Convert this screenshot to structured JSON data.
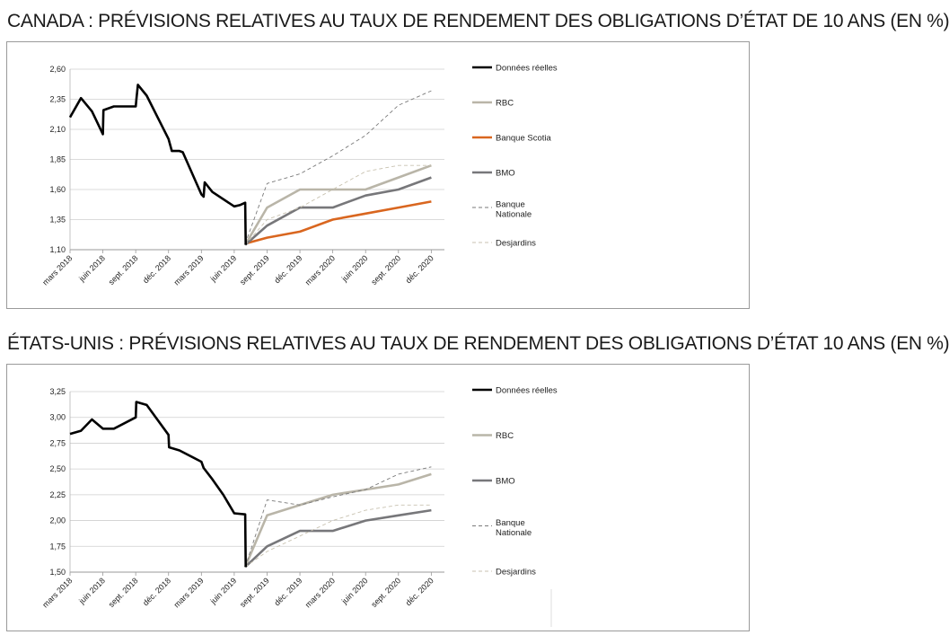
{
  "titles": {
    "canada": "CANADA : PRÉVISIONS RELATIVES AU TAUX DE RENDEMENT DES OBLIGATIONS D’ÉTAT DE 10 ANS (EN %)",
    "usa": "ÉTATS-UNIS : PRÉVISIONS RELATIVES AU TAUX DE RENDEMENT DES OBLIGATIONS D’ÉTAT 10 ANS (EN %)"
  },
  "chart_data": [
    {
      "type": "line",
      "title": "CANADA : PRÉVISIONS RELATIVES AU TAUX DE RENDEMENT DES OBLIGATIONS D’ÉTAT DE 10 ANS (EN %)",
      "x_tick_labels": [
        "mars 2018",
        "juin 2018",
        "sept. 2018",
        "déc. 2018",
        "mars 2019",
        "juin 2019",
        "sept. 2019",
        "déc. 2019",
        "mars 2020",
        "juin 2020",
        "sept. 2020",
        "déc. 2020"
      ],
      "x_tick_months": [
        0,
        3,
        6,
        9,
        12,
        15,
        18,
        21,
        24,
        27,
        30,
        33
      ],
      "xlim_months": [
        0,
        34.2
      ],
      "ylim": [
        1.1,
        2.6
      ],
      "y_ticks": [
        "1,10",
        "1,35",
        "1,60",
        "1,85",
        "2,10",
        "2,35",
        "2,60"
      ],
      "y_tick_values": [
        1.1,
        1.35,
        1.6,
        1.85,
        2.1,
        2.35,
        2.6
      ],
      "grid": "horizontal",
      "legend_position": "right",
      "series": [
        {
          "name": "Données réelles",
          "color": "#000000",
          "style": "solid-thick",
          "points": [
            [
              0,
              2.2
            ],
            [
              1,
              2.36
            ],
            [
              2,
              2.25
            ],
            [
              3,
              2.06
            ],
            [
              3.05,
              2.26
            ],
            [
              4,
              2.29
            ],
            [
              5,
              2.29
            ],
            [
              6,
              2.29
            ],
            [
              6.05,
              2.34
            ],
            [
              6.2,
              2.47
            ],
            [
              7,
              2.38
            ],
            [
              9,
              2.02
            ],
            [
              9.3,
              1.92
            ],
            [
              10,
              1.92
            ],
            [
              10.3,
              1.91
            ],
            [
              12,
              1.56
            ],
            [
              12.2,
              1.54
            ],
            [
              12.3,
              1.66
            ],
            [
              13,
              1.58
            ],
            [
              15,
              1.46
            ],
            [
              15.5,
              1.47
            ],
            [
              16,
              1.49
            ],
            [
              16.05,
              1.14
            ]
          ]
        },
        {
          "name": "RBC",
          "color": "#b9b5a8",
          "style": "solid-thick",
          "points": [
            [
              16,
              1.14
            ],
            [
              18,
              1.45
            ],
            [
              21,
              1.6
            ],
            [
              24,
              1.6
            ],
            [
              27,
              1.6
            ],
            [
              30,
              1.7
            ],
            [
              33,
              1.8
            ]
          ]
        },
        {
          "name": "Banque Scotia",
          "color": "#d9661f",
          "style": "solid-thick",
          "points": [
            [
              16,
              1.15
            ],
            [
              18,
              1.2
            ],
            [
              21,
              1.25
            ],
            [
              24,
              1.35
            ],
            [
              27,
              1.4
            ],
            [
              30,
              1.45
            ],
            [
              33,
              1.5
            ]
          ]
        },
        {
          "name": "BMO",
          "color": "#77777a",
          "style": "solid-thick",
          "points": [
            [
              16,
              1.14
            ],
            [
              18,
              1.3
            ],
            [
              21,
              1.45
            ],
            [
              24,
              1.45
            ],
            [
              27,
              1.55
            ],
            [
              30,
              1.6
            ],
            [
              33,
              1.7
            ]
          ]
        },
        {
          "name": "Banque Nationale",
          "color": "#7a7a7a",
          "style": "dashed-thin",
          "points": [
            [
              16,
              1.15
            ],
            [
              18,
              1.65
            ],
            [
              21,
              1.73
            ],
            [
              24,
              1.88
            ],
            [
              27,
              2.05
            ],
            [
              30,
              2.3
            ],
            [
              33,
              2.42
            ]
          ]
        },
        {
          "name": "Desjardins",
          "color": "#c8c2b0",
          "style": "dashed-thin",
          "points": [
            [
              16,
              1.14
            ],
            [
              18,
              1.35
            ],
            [
              21,
              1.45
            ],
            [
              24,
              1.6
            ],
            [
              27,
              1.75
            ],
            [
              30,
              1.8
            ],
            [
              33,
              1.8
            ]
          ]
        }
      ]
    },
    {
      "type": "line",
      "title": "ÉTATS-UNIS : PRÉVISIONS RELATIVES AU TAUX DE RENDEMENT DES OBLIGATIONS D’ÉTAT 10 ANS (EN %)",
      "x_tick_labels": [
        "mars 2018",
        "juin 2018",
        "sept. 2018",
        "déc. 2018",
        "mars 2019",
        "juin 2019",
        "sept. 2019",
        "déc. 2019",
        "mars 2020",
        "juin 2020",
        "sept. 2020",
        "déc. 2020"
      ],
      "x_tick_months": [
        0,
        3,
        6,
        9,
        12,
        15,
        18,
        21,
        24,
        27,
        30,
        33
      ],
      "xlim_months": [
        0,
        34.2
      ],
      "ylim": [
        1.5,
        3.25
      ],
      "y_ticks": [
        "1,50",
        "1,75",
        "2,00",
        "2,25",
        "2,50",
        "2,75",
        "3,00",
        "3,25"
      ],
      "y_tick_values": [
        1.5,
        1.75,
        2.0,
        2.25,
        2.5,
        2.75,
        3.0,
        3.25
      ],
      "grid": "horizontal",
      "legend_position": "right",
      "series": [
        {
          "name": "Données réelles",
          "color": "#000000",
          "style": "solid-thick",
          "points": [
            [
              0,
              2.84
            ],
            [
              1,
              2.87
            ],
            [
              2,
              2.98
            ],
            [
              3,
              2.89
            ],
            [
              4,
              2.89
            ],
            [
              6,
              3.0
            ],
            [
              6.05,
              3.15
            ],
            [
              7,
              3.12
            ],
            [
              9,
              2.83
            ],
            [
              9.05,
              2.71
            ],
            [
              10,
              2.68
            ],
            [
              12,
              2.57
            ],
            [
              12.2,
              2.51
            ],
            [
              13,
              2.4
            ],
            [
              14,
              2.25
            ],
            [
              15,
              2.07
            ],
            [
              16,
              2.06
            ],
            [
              16.05,
              1.55
            ]
          ]
        },
        {
          "name": "RBC",
          "color": "#b9b5a8",
          "style": "solid-thick",
          "points": [
            [
              16,
              1.55
            ],
            [
              18,
              2.05
            ],
            [
              21,
              2.15
            ],
            [
              24,
              2.25
            ],
            [
              27,
              2.3
            ],
            [
              30,
              2.35
            ],
            [
              33,
              2.45
            ]
          ]
        },
        {
          "name": "BMO",
          "color": "#77777a",
          "style": "solid-thick",
          "points": [
            [
              16,
              1.55
            ],
            [
              18,
              1.75
            ],
            [
              21,
              1.9
            ],
            [
              24,
              1.9
            ],
            [
              27,
              2.0
            ],
            [
              30,
              2.05
            ],
            [
              33,
              2.1
            ]
          ]
        },
        {
          "name": "Banque Nationale",
          "color": "#7a7a7a",
          "style": "dashed-thin",
          "points": [
            [
              16,
              1.55
            ],
            [
              18,
              2.2
            ],
            [
              21,
              2.15
            ],
            [
              24,
              2.23
            ],
            [
              27,
              2.3
            ],
            [
              30,
              2.45
            ],
            [
              33,
              2.52
            ]
          ]
        },
        {
          "name": "Desjardins",
          "color": "#c8c2b0",
          "style": "dashed-thin",
          "points": [
            [
              16,
              1.55
            ],
            [
              18,
              1.7
            ],
            [
              21,
              1.85
            ],
            [
              24,
              2.0
            ],
            [
              27,
              2.1
            ],
            [
              30,
              2.15
            ],
            [
              33,
              2.15
            ]
          ]
        }
      ]
    }
  ]
}
